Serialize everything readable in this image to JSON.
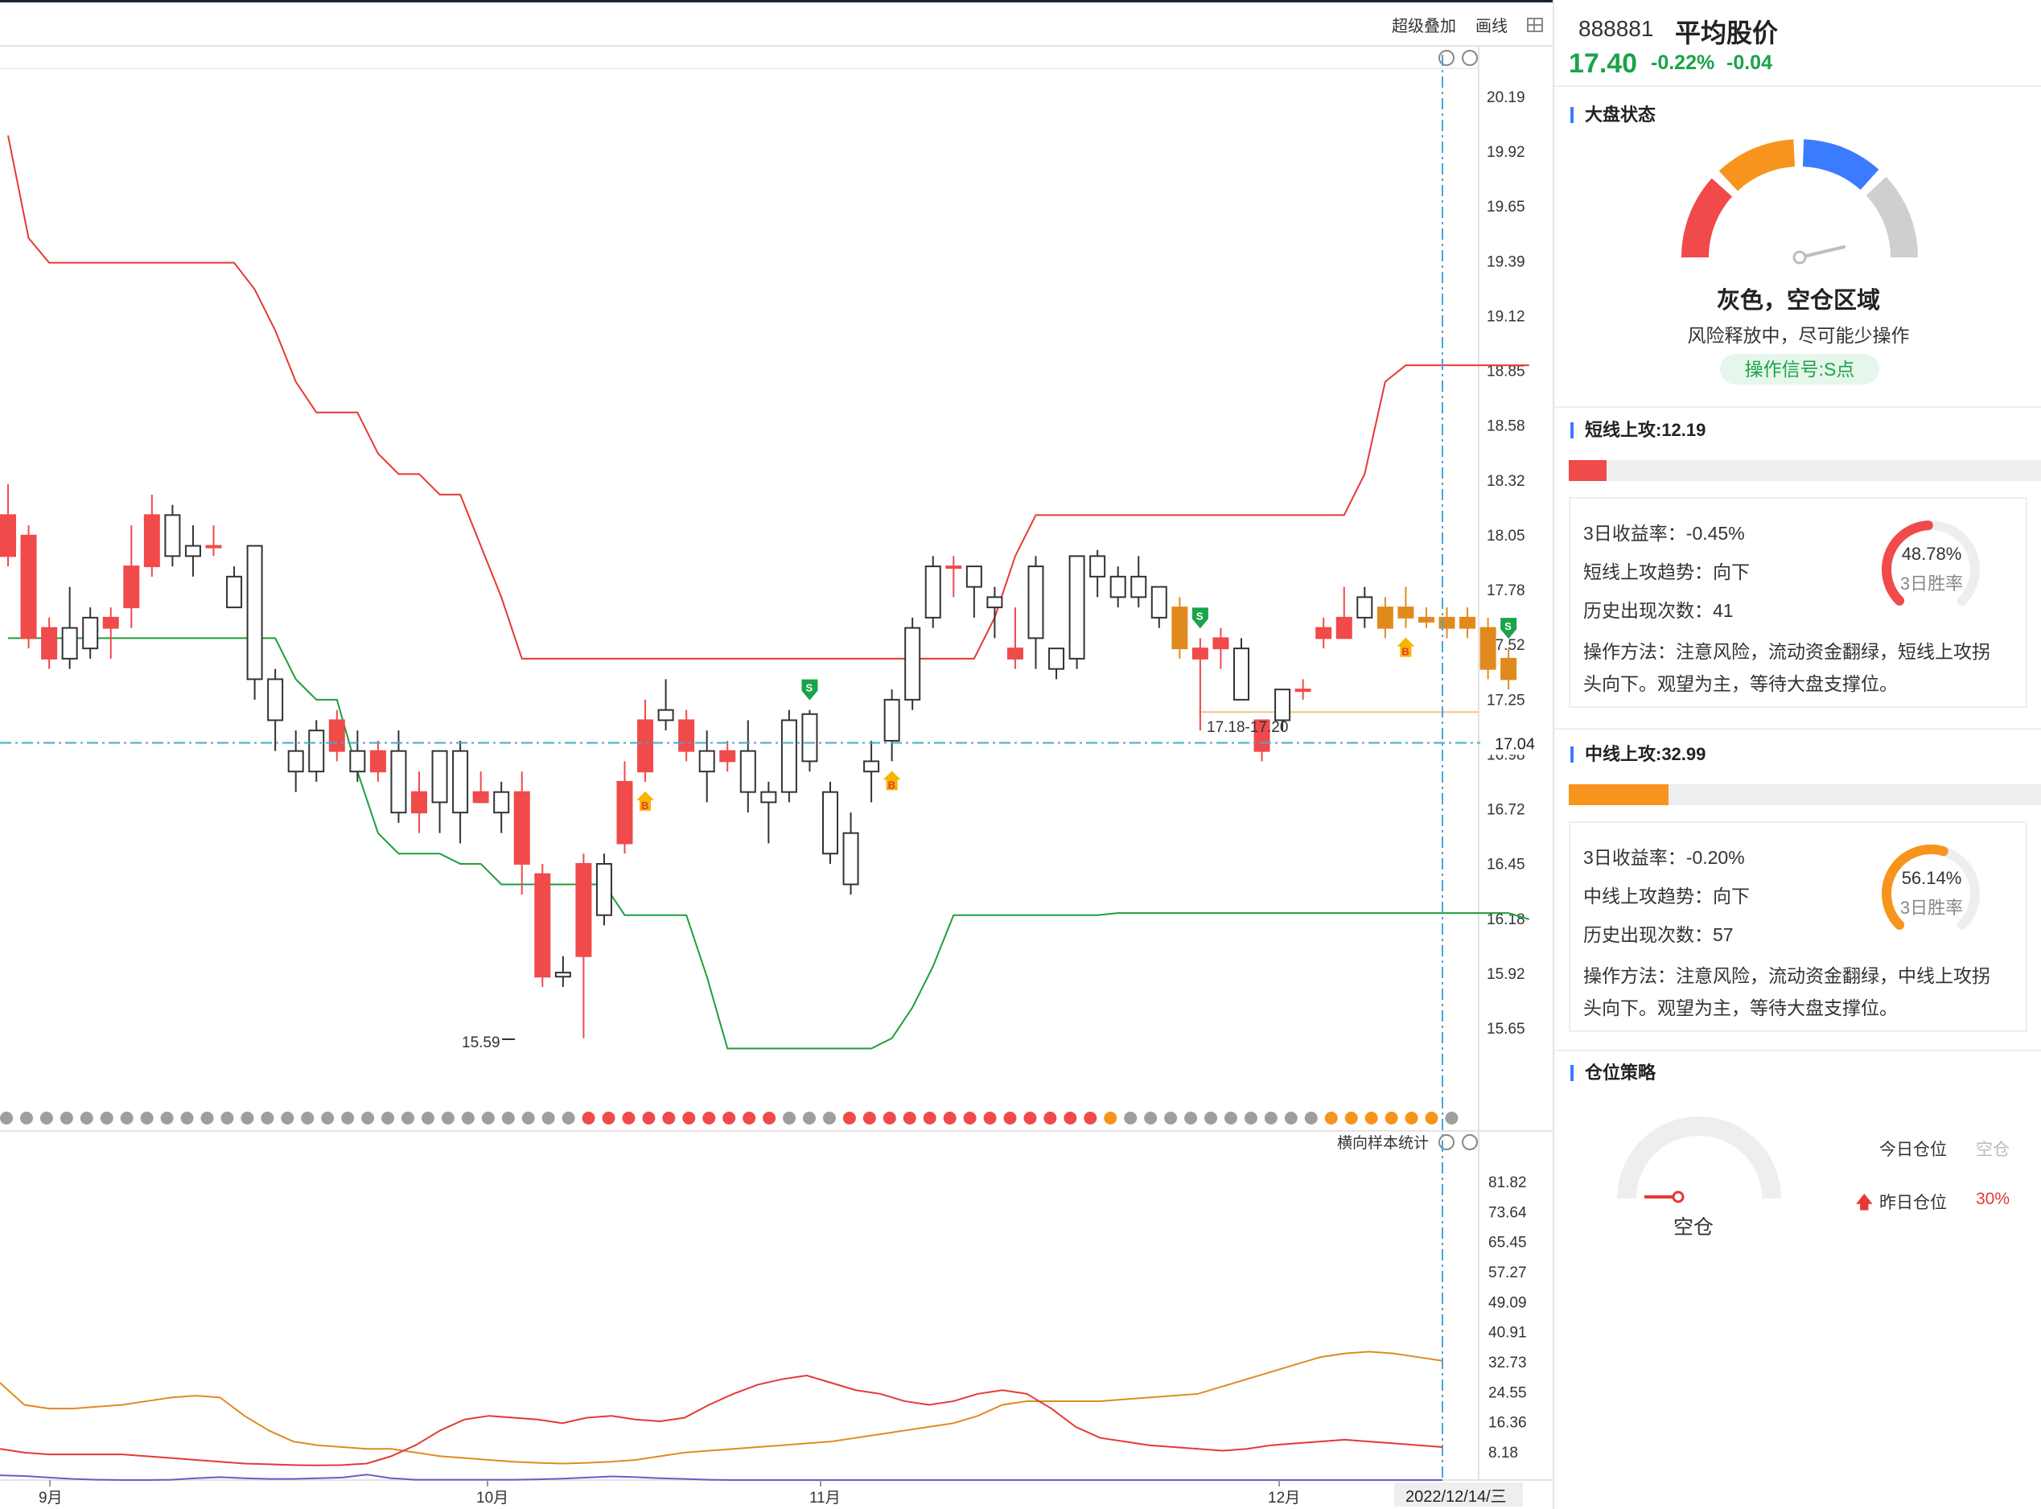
{
  "toolbar": {
    "overlay_label": "超级叠加",
    "draw_label": "画线"
  },
  "header": {
    "code": "888881",
    "name": "平均股价",
    "price": "17.40",
    "change_pct": "-0.22%",
    "change": "-0.04"
  },
  "market_status": {
    "section_title": "大盘状态",
    "status_title": "灰色，空仓区域",
    "status_desc": "风险释放中，尽可能少操作",
    "signal": "操作信号:S点",
    "colors": {
      "red": "#f04a4a",
      "orange": "#f7941d",
      "blue": "#3b7cff",
      "gray": "#cfcfcf"
    }
  },
  "short_attack": {
    "title": "短线上攻:12.19",
    "fill_fraction": 0.08,
    "color": "#f04a4a",
    "return_3d": "3日收益率：-0.45%",
    "trend": "短线上攻趋势：向下",
    "history_count": "历史出现次数：41",
    "method": "操作方法：注意风险，流动资金翻绿，短线上攻拐头向下。观望为主，等待大盘支撑位。",
    "win_rate_value": "48.78%",
    "win_rate_fraction": 0.4878,
    "win_rate_label": "3日胜率"
  },
  "mid_attack": {
    "title": "中线上攻:32.99",
    "fill_fraction": 0.21,
    "color": "#f7941d",
    "return_3d": "3日收益率：-0.20%",
    "trend": "中线上攻趋势：向下",
    "history_count": "历史出现次数：57",
    "method": "操作方法：注意风险，流动资金翻绿，中线上攻拐头向下。观望为主，等待大盘支撑位。",
    "win_rate_value": "56.14%",
    "win_rate_fraction": 0.5614,
    "win_rate_label": "3日胜率"
  },
  "position": {
    "section_title": "仓位策略",
    "gauge_label": "空仓",
    "today_label": "今日仓位",
    "today_value": "空仓",
    "yesterday_label": "昨日仓位",
    "yesterday_value": "30%"
  },
  "chart_data": {
    "type": "candlestick",
    "price_axis_labels": [
      "20.19",
      "19.92",
      "19.65",
      "19.39",
      "19.12",
      "18.85",
      "18.58",
      "18.32",
      "18.05",
      "17.78",
      "17.52",
      "17.25",
      "16.98",
      "16.72",
      "16.45",
      "16.18",
      "15.92",
      "15.65"
    ],
    "current_price_label": "17.04",
    "low_annotation": "15.59",
    "zone_annotation": "17.18-17.20",
    "indicator_axis_labels": [
      "81.82",
      "73.64",
      "65.45",
      "57.27",
      "49.09",
      "40.91",
      "32.73",
      "24.55",
      "16.36",
      "8.18"
    ],
    "indicator_title": "横向样本统计",
    "x_labels": [
      "9月",
      "10月",
      "11月",
      "12月"
    ],
    "crosshair_date": "2022/12/14/三",
    "candles": [
      [
        17.95,
        18.15,
        18.3,
        17.9
      ],
      [
        17.55,
        18.05,
        18.1,
        17.5
      ],
      [
        17.45,
        17.6,
        17.65,
        17.4
      ],
      [
        17.6,
        17.45,
        17.8,
        17.4
      ],
      [
        17.65,
        17.5,
        17.7,
        17.45
      ],
      [
        17.6,
        17.65,
        17.7,
        17.45
      ],
      [
        17.7,
        17.9,
        18.1,
        17.6
      ],
      [
        17.9,
        18.15,
        18.25,
        17.85
      ],
      [
        18.15,
        17.95,
        18.2,
        17.9
      ],
      [
        18.0,
        17.95,
        18.1,
        17.85
      ],
      [
        18.0,
        18.0,
        18.1,
        17.95
      ],
      [
        17.85,
        17.7,
        17.9,
        17.7
      ],
      [
        18.0,
        17.35,
        18.0,
        17.25
      ],
      [
        17.35,
        17.15,
        17.4,
        17.0
      ],
      [
        17.0,
        16.9,
        17.1,
        16.8
      ],
      [
        17.1,
        16.9,
        17.15,
        16.85
      ],
      [
        17.0,
        17.15,
        17.2,
        16.95
      ],
      [
        17.0,
        16.9,
        17.1,
        16.85
      ],
      [
        16.9,
        17.0,
        17.05,
        16.85
      ],
      [
        17.0,
        16.7,
        17.1,
        16.65
      ],
      [
        16.7,
        16.8,
        16.9,
        16.6
      ],
      [
        17.0,
        16.75,
        17.0,
        16.6
      ],
      [
        17.0,
        16.7,
        17.05,
        16.55
      ],
      [
        16.75,
        16.8,
        16.9,
        16.75
      ],
      [
        16.8,
        16.7,
        16.85,
        16.6
      ],
      [
        16.45,
        16.8,
        16.9,
        16.3
      ],
      [
        15.9,
        16.4,
        16.45,
        15.85
      ],
      [
        15.92,
        15.9,
        16.0,
        15.85
      ],
      [
        16.0,
        16.45,
        16.5,
        15.6
      ],
      [
        16.45,
        16.2,
        16.5,
        16.15
      ],
      [
        16.55,
        16.85,
        16.95,
        16.5
      ],
      [
        16.9,
        17.15,
        17.25,
        16.85
      ],
      [
        17.2,
        17.15,
        17.35,
        17.1
      ],
      [
        17.0,
        17.15,
        17.2,
        16.95
      ],
      [
        17.0,
        16.9,
        17.1,
        16.75
      ],
      [
        16.95,
        17.0,
        17.05,
        16.9
      ],
      [
        17.0,
        16.8,
        17.15,
        16.7
      ],
      [
        16.8,
        16.75,
        16.85,
        16.55
      ],
      [
        17.15,
        16.8,
        17.2,
        16.75
      ],
      [
        17.18,
        16.95,
        17.2,
        16.9
      ],
      [
        16.8,
        16.5,
        16.85,
        16.45
      ],
      [
        16.6,
        16.35,
        16.7,
        16.3
      ],
      [
        16.95,
        16.9,
        17.05,
        16.75
      ],
      [
        17.25,
        17.05,
        17.3,
        16.95
      ],
      [
        17.6,
        17.25,
        17.65,
        17.2
      ],
      [
        17.9,
        17.65,
        17.95,
        17.6
      ],
      [
        17.9,
        17.9,
        17.95,
        17.75
      ],
      [
        17.9,
        17.8,
        17.9,
        17.65
      ],
      [
        17.75,
        17.7,
        17.8,
        17.55
      ],
      [
        17.45,
        17.5,
        17.7,
        17.4
      ],
      [
        17.9,
        17.55,
        17.95,
        17.4
      ],
      [
        17.5,
        17.4,
        17.5,
        17.35
      ],
      [
        17.95,
        17.45,
        17.95,
        17.4
      ],
      [
        17.95,
        17.85,
        17.98,
        17.75
      ],
      [
        17.85,
        17.75,
        17.9,
        17.7
      ],
      [
        17.85,
        17.75,
        17.95,
        17.7
      ],
      [
        17.8,
        17.65,
        17.8,
        17.6
      ],
      [
        17.7,
        17.5,
        17.75,
        17.45
      ],
      [
        17.45,
        17.5,
        17.55,
        17.1
      ],
      [
        17.5,
        17.55,
        17.6,
        17.4
      ],
      [
        17.5,
        17.25,
        17.55,
        17.25
      ],
      [
        17.0,
        17.15,
        17.15,
        16.95
      ],
      [
        17.3,
        17.15,
        17.3,
        17.1
      ],
      [
        17.3,
        17.3,
        17.35,
        17.25
      ],
      [
        17.55,
        17.6,
        17.65,
        17.5
      ],
      [
        17.55,
        17.65,
        17.8,
        17.55
      ],
      [
        17.75,
        17.65,
        17.8,
        17.6
      ],
      [
        17.6,
        17.7,
        17.75,
        17.55
      ],
      [
        17.7,
        17.65,
        17.8,
        17.6
      ],
      [
        17.65,
        17.63,
        17.7,
        17.6
      ],
      [
        17.65,
        17.6,
        17.7,
        17.55
      ],
      [
        17.65,
        17.6,
        17.7,
        17.55
      ],
      [
        17.6,
        17.4,
        17.65,
        17.35
      ],
      [
        17.35,
        17.45,
        17.5,
        17.3
      ]
    ],
    "upper_band": [
      20.0,
      19.5,
      19.38,
      19.38,
      19.38,
      19.38,
      19.38,
      19.38,
      19.38,
      19.38,
      19.38,
      19.38,
      19.25,
      19.05,
      18.8,
      18.65,
      18.65,
      18.65,
      18.45,
      18.35,
      18.35,
      18.25,
      18.25,
      18.0,
      17.75,
      17.45,
      17.45,
      17.45,
      17.45,
      17.45,
      17.45,
      17.45,
      17.45,
      17.45,
      17.45,
      17.45,
      17.45,
      17.45,
      17.45,
      17.45,
      17.45,
      17.45,
      17.45,
      17.45,
      17.45,
      17.45,
      17.45,
      17.45,
      17.65,
      17.95,
      18.15,
      18.15,
      18.15,
      18.15,
      18.15,
      18.15,
      18.15,
      18.15,
      18.15,
      18.15,
      18.15,
      18.15,
      18.15,
      18.15,
      18.15,
      18.15,
      18.35,
      18.8,
      18.88,
      18.88,
      18.88,
      18.88,
      18.88,
      18.88,
      18.88
    ],
    "lower_band": [
      17.55,
      17.55,
      17.55,
      17.55,
      17.55,
      17.55,
      17.55,
      17.55,
      17.55,
      17.55,
      17.55,
      17.55,
      17.55,
      17.55,
      17.35,
      17.25,
      17.25,
      16.9,
      16.6,
      16.5,
      16.5,
      16.5,
      16.45,
      16.45,
      16.35,
      16.35,
      16.35,
      16.35,
      16.35,
      16.35,
      16.2,
      16.2,
      16.2,
      16.2,
      15.9,
      15.55,
      15.55,
      15.55,
      15.55,
      15.55,
      15.55,
      15.55,
      15.55,
      15.6,
      15.75,
      15.95,
      16.2,
      16.2,
      16.2,
      16.2,
      16.2,
      16.2,
      16.2,
      16.2,
      16.21,
      16.21,
      16.21,
      16.21,
      16.21,
      16.21,
      16.21,
      16.21,
      16.21,
      16.21,
      16.21,
      16.21,
      16.21,
      16.21,
      16.21,
      16.21,
      16.21,
      16.21,
      16.21,
      16.21,
      16.18
    ],
    "signals": [
      {
        "type": "B",
        "index": 31
      },
      {
        "type": "S",
        "index": 39
      },
      {
        "type": "B",
        "index": 43
      },
      {
        "type": "S",
        "index": 58
      },
      {
        "type": "B",
        "index": 68
      },
      {
        "type": "S",
        "index": 73
      }
    ],
    "dot_states": [
      "g",
      "g",
      "g",
      "g",
      "g",
      "g",
      "g",
      "g",
      "g",
      "g",
      "g",
      "g",
      "g",
      "g",
      "g",
      "g",
      "g",
      "g",
      "g",
      "g",
      "g",
      "g",
      "g",
      "g",
      "g",
      "g",
      "g",
      "g",
      "g",
      "r",
      "r",
      "r",
      "r",
      "r",
      "r",
      "r",
      "r",
      "r",
      "r",
      "g",
      "g",
      "g",
      "r",
      "r",
      "r",
      "r",
      "r",
      "r",
      "r",
      "r",
      "r",
      "r",
      "r",
      "r",
      "r",
      "o",
      "g",
      "g",
      "g",
      "g",
      "g",
      "g",
      "g",
      "g",
      "g",
      "g",
      "o",
      "o",
      "o",
      "o",
      "o",
      "o",
      "g"
    ],
    "orange_line": [
      27,
      21,
      20,
      20,
      20.5,
      21,
      22,
      23,
      23.5,
      23,
      18,
      14,
      11,
      10,
      9.5,
      9,
      9,
      8,
      7,
      6.5,
      6,
      5.5,
      5.2,
      5,
      5.2,
      5.5,
      6,
      7,
      8,
      8.5,
      9,
      9.5,
      10,
      10.5,
      11,
      12,
      13,
      14,
      15,
      16,
      18,
      21,
      22,
      22,
      22,
      22,
      22.5,
      23,
      23.5,
      24,
      26,
      28,
      30,
      32,
      34,
      35,
      35.5,
      35,
      34,
      33
    ],
    "red_line": [
      9,
      8,
      7.5,
      7.5,
      7.5,
      7.5,
      7,
      6.5,
      6,
      5.5,
      5,
      4.8,
      4.6,
      4.5,
      4.6,
      5,
      7,
      10,
      14,
      17,
      18,
      17.5,
      17,
      16,
      17.5,
      18,
      17,
      16.5,
      17.5,
      21,
      24,
      26.5,
      28,
      29,
      27,
      25,
      24,
      22,
      21,
      22,
      24,
      25,
      24,
      20,
      15,
      12,
      11,
      10,
      9.5,
      9,
      8.5,
      9,
      10,
      10.5,
      11,
      11.5,
      11,
      10.5,
      10,
      9.5
    ],
    "blue_line": [
      1.8,
      1.6,
      1.2,
      0.8,
      0.6,
      0.5,
      0.5,
      0.6,
      1.0,
      1.3,
      1.0,
      0.8,
      0.8,
      1.0,
      1.2,
      2.0,
      1.0,
      0.6,
      0.6,
      0.6,
      0.6,
      0.6,
      0.7,
      0.9,
      1.2,
      1.5,
      1.3,
      1.0,
      0.8,
      0.6,
      0.5,
      0.5,
      0.5,
      0.5,
      0.5,
      0.5,
      0.5,
      0.5,
      0.5,
      0.5,
      0.5,
      0.5,
      0.5,
      0.5,
      0.5,
      0.5,
      0.5,
      0.5,
      0.5,
      0.5,
      0.5,
      0.5,
      0.5,
      0.5,
      0.5,
      0.5,
      0.5,
      0.5,
      0.5,
      0.5
    ]
  }
}
